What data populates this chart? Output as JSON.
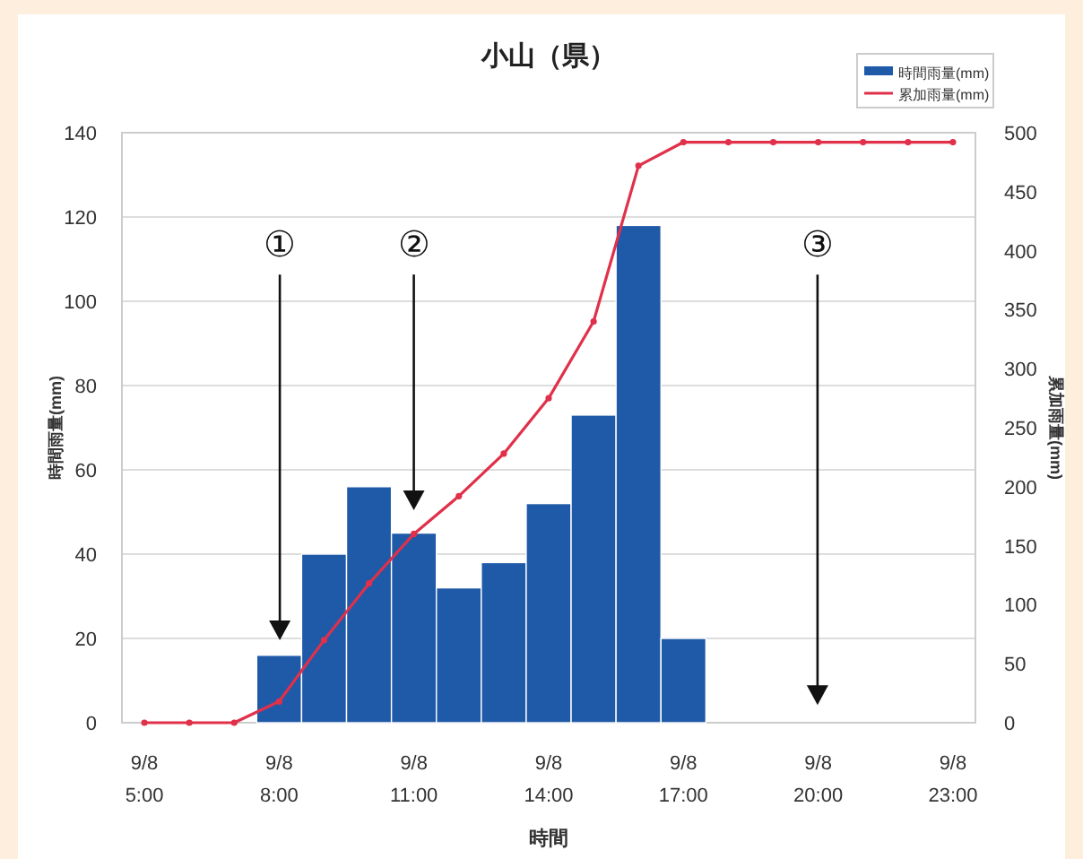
{
  "chart_data": {
    "type": "bar",
    "title": "小山（県）",
    "xlabel": "時間",
    "ylabel": "時間雨量(mm)",
    "y2label": "累加雨量(mm)",
    "categories": [
      "9/8\n5:00",
      null,
      null,
      "9/8\n8:00",
      null,
      null,
      "9/8\n11:00",
      null,
      null,
      "9/8\n14:00",
      null,
      null,
      "9/8\n17:00",
      null,
      null,
      "9/8\n20:00",
      null,
      null,
      "9/8\n23:00"
    ],
    "ylim": [
      0,
      140
    ],
    "yticks": [
      0,
      20,
      40,
      60,
      80,
      100,
      120,
      140
    ],
    "y2lim": [
      0,
      500
    ],
    "y2ticks": [
      0,
      50,
      100,
      150,
      200,
      250,
      300,
      350,
      400,
      450,
      500
    ],
    "grid": "y",
    "legend": "top right",
    "marker": "circle",
    "line_style": "solid",
    "series": [
      {
        "name": "時間雨量(mm)",
        "color": "#1f5aa8",
        "values": [
          0,
          0,
          0,
          16,
          40,
          56,
          45,
          32,
          38,
          52,
          73,
          118,
          20,
          0,
          0,
          0,
          0,
          0,
          0
        ]
      },
      {
        "name": "累加雨量(mm)",
        "type": "line",
        "axis": "y2",
        "color": "#e0304a",
        "values": [
          0,
          0,
          0,
          18,
          70,
          118,
          160,
          192,
          228,
          275,
          340,
          472,
          492,
          492,
          492,
          492,
          492,
          492,
          492
        ]
      }
    ],
    "annotations": [
      "①",
      "②",
      "③"
    ]
  }
}
